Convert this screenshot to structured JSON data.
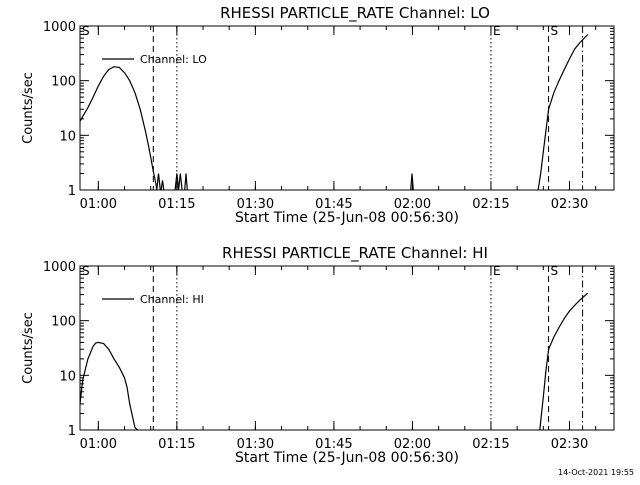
{
  "chart_data": [
    {
      "type": "line",
      "title": "RHESSI PARTICLE_RATE Channel: LO",
      "xlabel": "Start Time (25-Jun-08 00:56:30)",
      "ylabel": "Counts/sec",
      "yscale": "log",
      "ylim": [
        1,
        1000
      ],
      "xlim": [
        "00:56:30",
        "02:38:30"
      ],
      "x_ticks": [
        "01:00",
        "01:15",
        "01:30",
        "01:45",
        "02:00",
        "02:15",
        "02:30"
      ],
      "y_ticks": [
        "1",
        "10",
        "100",
        "1000"
      ],
      "legend": {
        "entry": "Channel: LO",
        "placement": "top-left"
      },
      "markers": [
        {
          "label": "S",
          "time": "00:56:30",
          "style": "dashed"
        },
        {
          "label": "",
          "time": "01:10:30",
          "style": "dashed"
        },
        {
          "label": "",
          "time": "01:15:00",
          "style": "dotted"
        },
        {
          "label": "E",
          "time": "02:15:00",
          "style": "dotted"
        },
        {
          "label": "S",
          "time": "02:26:00",
          "style": "dashed"
        },
        {
          "label": "",
          "time": "02:32:30",
          "style": "dashdot"
        }
      ],
      "series": [
        {
          "segments": [
            {
              "x": [
                "00:56:30",
                "00:57:00",
                "00:58:00",
                "00:59:00",
                "01:00:00",
                "01:01:00",
                "01:02:00",
                "01:03:00",
                "01:04:00",
                "01:05:00",
                "01:06:00",
                "01:07:00",
                "01:08:00",
                "01:09:00",
                "01:09:30",
                "01:10:00",
                "01:10:30",
                "01:11:00",
                "01:11:10"
              ],
              "y": [
                18,
                22,
                32,
                50,
                80,
                120,
                160,
                180,
                175,
                140,
                100,
                60,
                30,
                12,
                7,
                4,
                2.2,
                1.3,
                1
              ]
            },
            {
              "x": [
                "01:11:10",
                "01:11:30",
                "01:11:50"
              ],
              "y": [
                1,
                2,
                1
              ]
            },
            {
              "x": [
                "01:12:00",
                "01:12:15",
                "01:12:30"
              ],
              "y": [
                1,
                1.5,
                1
              ]
            },
            {
              "x": [
                "01:14:40",
                "01:15:00",
                "01:15:20",
                "01:15:40",
                "01:16:00"
              ],
              "y": [
                1,
                2,
                1,
                2,
                1
              ]
            },
            {
              "x": [
                "01:16:30",
                "01:16:45",
                "01:17:00"
              ],
              "y": [
                1,
                2,
                1
              ]
            },
            {
              "x": [
                "01:59:40",
                "01:59:55",
                "02:00:10"
              ],
              "y": [
                1,
                2,
                1
              ]
            },
            {
              "x": [
                "02:24:00",
                "02:24:30",
                "02:25:00",
                "02:25:30",
                "02:26:00",
                "02:27:00",
                "02:28:00",
                "02:29:00",
                "02:30:00",
                "02:31:00",
                "02:32:00",
                "02:33:30"
              ],
              "y": [
                1,
                2,
                5,
                12,
                30,
                60,
                100,
                160,
                250,
                380,
                500,
                700
              ]
            }
          ]
        }
      ]
    },
    {
      "type": "line",
      "title": "RHESSI PARTICLE_RATE Channel: HI",
      "xlabel": "Start Time (25-Jun-08 00:56:30)",
      "ylabel": "Counts/sec",
      "yscale": "log",
      "ylim": [
        1,
        1000
      ],
      "xlim": [
        "00:56:30",
        "02:38:30"
      ],
      "x_ticks": [
        "01:00",
        "01:15",
        "01:30",
        "01:45",
        "02:00",
        "02:15",
        "02:30"
      ],
      "y_ticks": [
        "1",
        "10",
        "100",
        "1000"
      ],
      "legend": {
        "entry": "Channel: HI",
        "placement": "top-left"
      },
      "markers": [
        {
          "label": "S",
          "time": "00:56:30",
          "style": "dashed"
        },
        {
          "label": "",
          "time": "01:10:30",
          "style": "dashed"
        },
        {
          "label": "",
          "time": "01:15:00",
          "style": "dotted"
        },
        {
          "label": "E",
          "time": "02:15:00",
          "style": "dotted"
        },
        {
          "label": "S",
          "time": "02:26:00",
          "style": "dashed"
        },
        {
          "label": "",
          "time": "02:32:30",
          "style": "dashdot"
        }
      ],
      "series": [
        {
          "segments": [
            {
              "x": [
                "00:56:30",
                "00:57:00",
                "00:58:00",
                "00:59:00",
                "00:59:30",
                "01:00:00",
                "01:01:00",
                "01:02:00",
                "01:03:00",
                "01:04:00",
                "01:05:00",
                "01:05:30",
                "01:06:00",
                "01:06:30",
                "01:07:00",
                "01:07:30"
              ],
              "y": [
                3,
                8,
                20,
                34,
                39,
                40,
                38,
                30,
                20,
                14,
                9,
                6,
                3,
                1.8,
                1.1,
                1
              ]
            },
            {
              "x": [
                "02:24:20",
                "02:25:00",
                "02:25:30",
                "02:26:00",
                "02:27:00",
                "02:28:00",
                "02:29:00",
                "02:30:00",
                "02:31:00",
                "02:32:00",
                "02:33:30"
              ],
              "y": [
                1,
                4,
                12,
                30,
                50,
                75,
                110,
                150,
                190,
                240,
                320
              ]
            }
          ]
        }
      ]
    }
  ],
  "footer_timestamp": "14-Oct-2021 19:55"
}
